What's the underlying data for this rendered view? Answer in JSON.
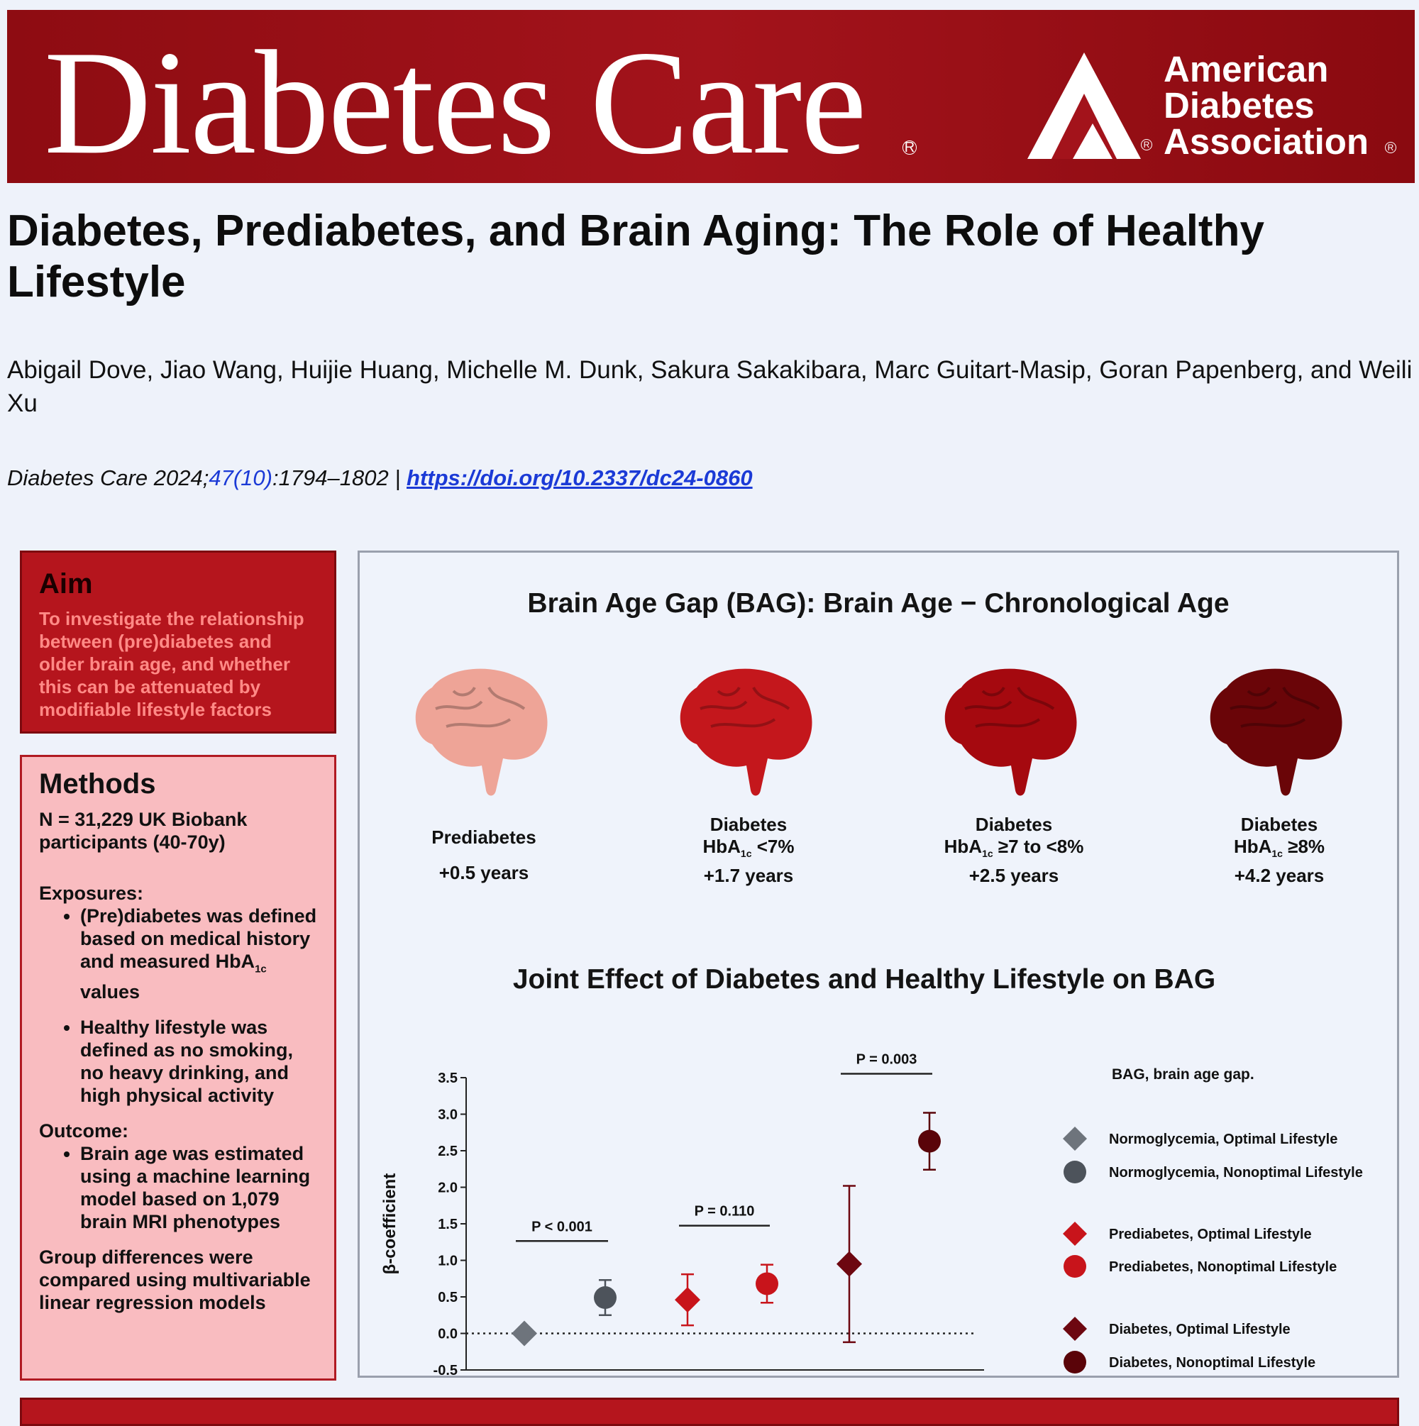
{
  "header": {
    "journal_name": "Diabetes Care",
    "registered_mark": "R",
    "ada_lines": [
      "American",
      "Diabetes",
      "Association"
    ]
  },
  "article": {
    "title": "Diabetes, Prediabetes, and Brain Aging: The Role of Healthy Lifestyle",
    "authors": "Abigail Dove, Jiao Wang, Huijie Huang, Michelle M. Dunk, Sakura Sakakibara, Marc Guitart-Masip, Goran Papenberg, and Weili Xu",
    "citation_prefix": "Diabetes Care 2024;",
    "citation_issue": "47(10)",
    "citation_pages": ":1794–1802",
    "citation_sep": " | ",
    "doi": "https://doi.org/10.2337/dc24-0860"
  },
  "aim": {
    "heading": "Aim",
    "text": "To investigate the relationship between (pre)diabetes and older brain age, and whether this can be attenuated by modifiable lifestyle factors"
  },
  "methods": {
    "heading": "Methods",
    "population": "N = 31,229 UK Biobank participants (40-70y)",
    "exposures_label": "Exposures:",
    "exposure_1": "(Pre)diabetes was defined based on medical history and measured HbA",
    "exposure_1_sub": "1c",
    "exposure_1_end": " values",
    "exposure_2": "Healthy lifestyle was defined as no smoking, no heavy drinking, and high physical activity",
    "outcome_label": "Outcome:",
    "outcome_1": "Brain age was estimated using a machine learning model based on 1,079 brain MRI phenotypes",
    "analysis": "Group differences were compared using multivariable linear regression models"
  },
  "bag_section": {
    "title": "Brain Age Gap (BAG): Brain Age − Chronological Age",
    "groups": [
      {
        "line1": "Prediabetes",
        "hba_sub": "",
        "hba_rest": "",
        "gain": "+0.5 years",
        "color": "#eea497"
      },
      {
        "line1": "Diabetes",
        "hba": "HbA",
        "hba_sub": "1c",
        "hba_rest": " <7%",
        "gain": "+1.7 years",
        "color": "#c4171c"
      },
      {
        "line1": "Diabetes",
        "hba": "HbA",
        "hba_sub": "1c",
        "hba_rest": " ≥7 to <8%",
        "gain": "+2.5 years",
        "color": "#a5090f"
      },
      {
        "line1": "Diabetes",
        "hba": "HbA",
        "hba_sub": "1c",
        "hba_rest": " ≥8%",
        "gain": "+4.2 years",
        "color": "#6a0508"
      }
    ]
  },
  "joint_section": {
    "title": "Joint Effect of Diabetes and Healthy Lifestyle on BAG",
    "footnote": "BAG, brain age gap."
  },
  "chart_data": {
    "type": "scatter",
    "title": "Joint Effect of Diabetes and Healthy Lifestyle on BAG",
    "xlabel": "",
    "ylabel": "β-coefficient",
    "ylim": [
      -0.5,
      3.5
    ],
    "yticks": [
      "3.5",
      "3.0",
      "2.5",
      "2.0",
      "1.5",
      "1.0",
      "0.5",
      "0.0",
      "-0.5"
    ],
    "reference_line": 0,
    "series": [
      {
        "name": "Normoglycemia, Optimal Lifestyle",
        "marker": "diamond",
        "color": "#6e747c",
        "value": 0.0,
        "ci": [
          0.0,
          0.0
        ]
      },
      {
        "name": "Normoglycemia, Nonoptimal Lifestyle",
        "marker": "circle",
        "color": "#4d535b",
        "value": 0.49,
        "ci": [
          0.25,
          0.73
        ]
      },
      {
        "name": "Prediabetes, Optimal Lifestyle",
        "marker": "diamond",
        "color": "#c8141b",
        "value": 0.46,
        "ci": [
          0.11,
          0.81
        ]
      },
      {
        "name": "Prediabetes, Nonoptimal Lifestyle",
        "marker": "circle",
        "color": "#c8141b",
        "value": 0.68,
        "ci": [
          0.42,
          0.94
        ]
      },
      {
        "name": "Diabetes, Optimal Lifestyle",
        "marker": "diamond",
        "color": "#6d0710",
        "value": 0.95,
        "ci": [
          -0.12,
          2.02
        ]
      },
      {
        "name": "Diabetes, Nonoptimal Lifestyle",
        "marker": "circle",
        "color": "#5a0409",
        "value": 2.63,
        "ci": [
          2.24,
          3.02
        ]
      }
    ],
    "comparisons": [
      {
        "label": "P < 0.001",
        "between": [
          0,
          1
        ]
      },
      {
        "label": "P = 0.110",
        "between": [
          2,
          3
        ]
      },
      {
        "label": "P = 0.003",
        "between": [
          4,
          5
        ]
      }
    ]
  }
}
